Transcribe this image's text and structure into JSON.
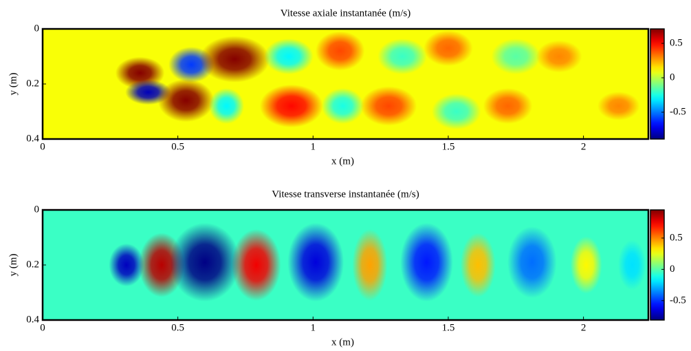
{
  "chart_data": [
    {
      "type": "heatmap",
      "title": "Vitesse axiale instantanée (m/s)",
      "xlabel": "x (m)",
      "ylabel": "y (m)",
      "xlim": [
        0,
        2.24
      ],
      "ylim": [
        0,
        0.4
      ],
      "y_inverted": true,
      "xticks": [
        0,
        0.5,
        1,
        1.5,
        2
      ],
      "yticks": [
        0,
        0.2,
        0.4
      ],
      "colormap": "jet",
      "clim": [
        -0.89,
        0.71
      ],
      "cticks": [
        -0.5,
        0,
        0.5
      ],
      "background": 0.1,
      "blobs": [
        {
          "x": 0.36,
          "y": 0.16,
          "value": 0.7,
          "width": 0.14,
          "height": 0.09
        },
        {
          "x": 0.39,
          "y": 0.23,
          "value": -0.8,
          "width": 0.13,
          "height": 0.07
        },
        {
          "x": 0.55,
          "y": 0.13,
          "value": -0.6,
          "width": 0.13,
          "height": 0.1
        },
        {
          "x": 0.53,
          "y": 0.26,
          "value": 0.7,
          "width": 0.16,
          "height": 0.12
        },
        {
          "x": 0.71,
          "y": 0.11,
          "value": 0.7,
          "width": 0.2,
          "height": 0.13
        },
        {
          "x": 0.68,
          "y": 0.28,
          "value": -0.3,
          "width": 0.1,
          "height": 0.1
        },
        {
          "x": 0.91,
          "y": 0.1,
          "value": -0.3,
          "width": 0.14,
          "height": 0.1
        },
        {
          "x": 0.92,
          "y": 0.28,
          "value": 0.5,
          "width": 0.18,
          "height": 0.12
        },
        {
          "x": 1.1,
          "y": 0.08,
          "value": 0.4,
          "width": 0.14,
          "height": 0.11
        },
        {
          "x": 1.11,
          "y": 0.28,
          "value": -0.25,
          "width": 0.12,
          "height": 0.1
        },
        {
          "x": 1.28,
          "y": 0.28,
          "value": 0.4,
          "width": 0.16,
          "height": 0.11
        },
        {
          "x": 1.33,
          "y": 0.1,
          "value": -0.2,
          "width": 0.14,
          "height": 0.1
        },
        {
          "x": 1.5,
          "y": 0.07,
          "value": 0.35,
          "width": 0.14,
          "height": 0.1
        },
        {
          "x": 1.53,
          "y": 0.3,
          "value": -0.2,
          "width": 0.14,
          "height": 0.1
        },
        {
          "x": 1.72,
          "y": 0.28,
          "value": 0.35,
          "width": 0.14,
          "height": 0.1
        },
        {
          "x": 1.75,
          "y": 0.1,
          "value": -0.15,
          "width": 0.14,
          "height": 0.1
        },
        {
          "x": 1.91,
          "y": 0.1,
          "value": 0.3,
          "width": 0.13,
          "height": 0.09
        },
        {
          "x": 2.13,
          "y": 0.28,
          "value": 0.3,
          "width": 0.12,
          "height": 0.08
        }
      ]
    },
    {
      "type": "heatmap",
      "title": "Vitesse transverse instantanée (m/s)",
      "xlabel": "x (m)",
      "ylabel": "y (m)",
      "xlim": [
        0,
        2.24
      ],
      "ylim": [
        0,
        0.4
      ],
      "y_inverted": true,
      "xticks": [
        0,
        0.5,
        1,
        1.5,
        2
      ],
      "yticks": [
        0,
        0.2,
        0.4
      ],
      "colormap": "jet",
      "clim": [
        -0.81,
        0.95
      ],
      "cticks": [
        -0.5,
        0,
        0.5
      ],
      "background": -0.05,
      "blobs": [
        {
          "x": 0.31,
          "y": 0.2,
          "value": -0.7,
          "width": 0.1,
          "height": 0.12
        },
        {
          "x": 0.44,
          "y": 0.2,
          "value": 0.85,
          "width": 0.13,
          "height": 0.18
        },
        {
          "x": 0.6,
          "y": 0.19,
          "value": -0.8,
          "width": 0.2,
          "height": 0.22
        },
        {
          "x": 0.79,
          "y": 0.2,
          "value": 0.75,
          "width": 0.14,
          "height": 0.2
        },
        {
          "x": 1.01,
          "y": 0.19,
          "value": -0.65,
          "width": 0.16,
          "height": 0.22
        },
        {
          "x": 1.21,
          "y": 0.2,
          "value": 0.45,
          "width": 0.1,
          "height": 0.2
        },
        {
          "x": 1.42,
          "y": 0.19,
          "value": -0.55,
          "width": 0.15,
          "height": 0.22
        },
        {
          "x": 1.61,
          "y": 0.2,
          "value": 0.4,
          "width": 0.1,
          "height": 0.18
        },
        {
          "x": 1.81,
          "y": 0.19,
          "value": -0.4,
          "width": 0.14,
          "height": 0.2
        },
        {
          "x": 2.01,
          "y": 0.2,
          "value": 0.3,
          "width": 0.09,
          "height": 0.16
        },
        {
          "x": 2.18,
          "y": 0.2,
          "value": -0.2,
          "width": 0.08,
          "height": 0.14
        }
      ]
    }
  ]
}
